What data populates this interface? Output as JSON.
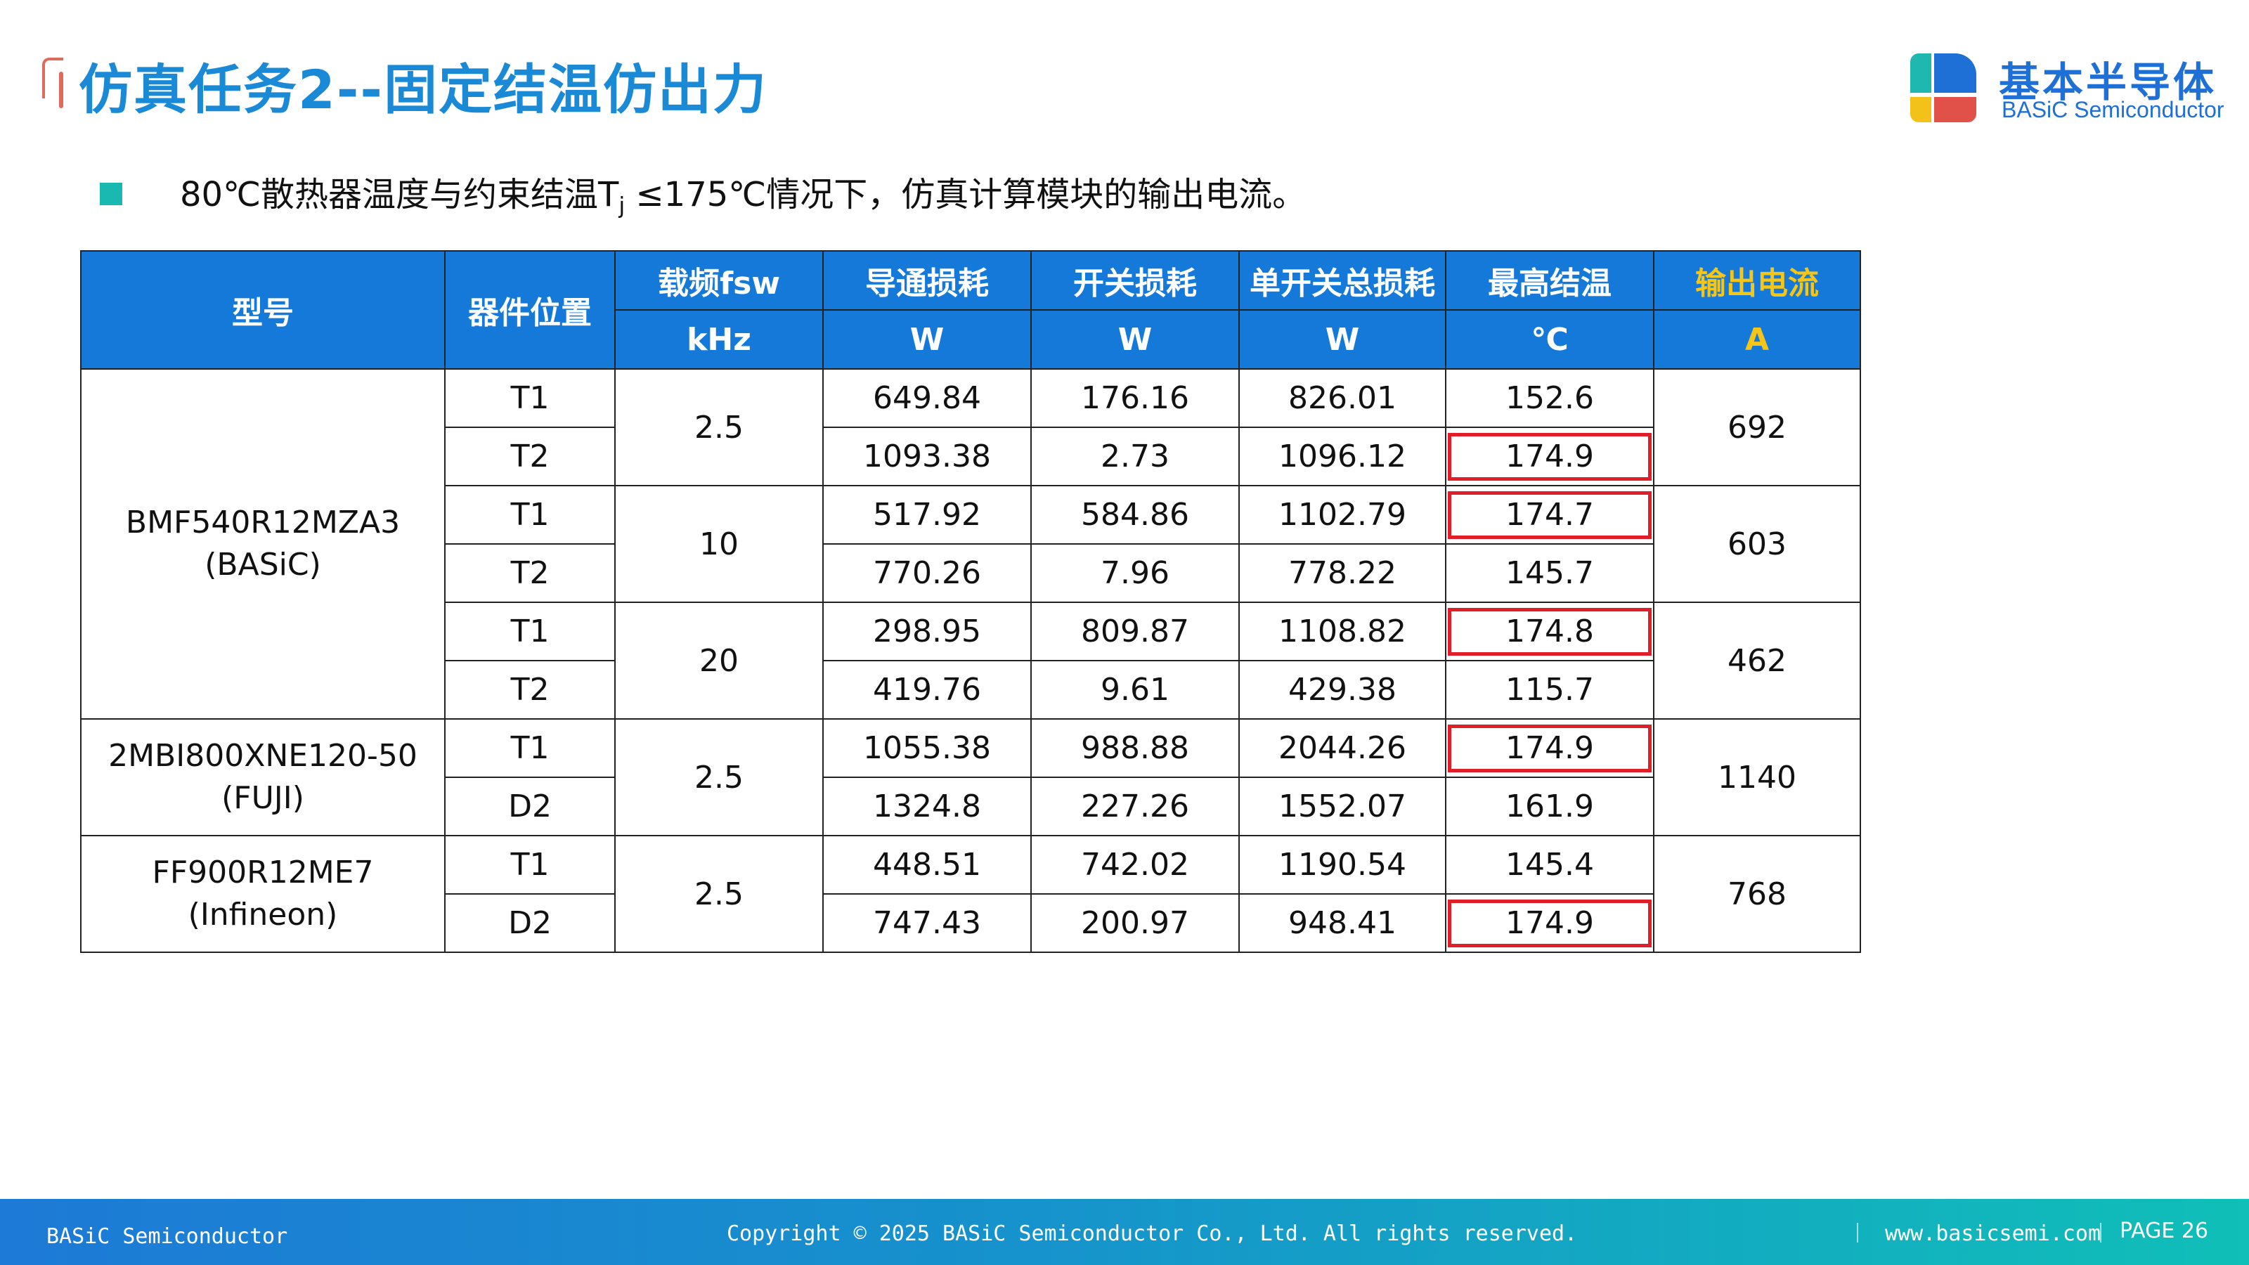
{
  "header": {
    "title": "仿真任务2--固定结温仿出力",
    "logo": {
      "name_cn": "基本半导体",
      "name_en": "BASiC Semiconductor",
      "colors": [
        "#1fb8b0",
        "#1e6fd6",
        "#f2c21a",
        "#e2504a"
      ]
    }
  },
  "bullet": {
    "text_before": "80℃散热器温度与约束结温T",
    "subscript": "j",
    "text_after": " ≤175℃情况下，仿真计算模块的输出电流。"
  },
  "table": {
    "headers": {
      "model": "型号",
      "position": "器件位置",
      "fsw": "载频fsw",
      "conduction_loss": "导通损耗",
      "switching_loss": "开关损耗",
      "total_loss": "单开关总损耗",
      "max_tj": "最高结温",
      "output_current": "输出电流"
    },
    "units": {
      "fsw": "kHz",
      "conduction_loss": "W",
      "switching_loss": "W",
      "total_loss": "W",
      "max_tj": "℃",
      "output_current": "A"
    },
    "groups": [
      {
        "model_line1": "BMF540R12MZA3",
        "model_line2": "(BASiC)"
      },
      {
        "model_line1": "2MBI800XNE120-50",
        "model_line2": "(FUJI)"
      },
      {
        "model_line1": "FF900R12ME7",
        "model_line2": "(Infineon)"
      }
    ],
    "conditions": [
      {
        "fsw": "2.5",
        "output_current": "692"
      },
      {
        "fsw": "10",
        "output_current": "603"
      },
      {
        "fsw": "20",
        "output_current": "462"
      },
      {
        "fsw": "2.5",
        "output_current": "1140"
      },
      {
        "fsw": "2.5",
        "output_current": "768"
      }
    ],
    "rows": [
      {
        "position": "T1",
        "conduction_loss": "649.84",
        "switching_loss": "176.16",
        "total_loss": "826.01",
        "max_tj": "152.6",
        "flagged": false
      },
      {
        "position": "T2",
        "conduction_loss": "1093.38",
        "switching_loss": "2.73",
        "total_loss": "1096.12",
        "max_tj": "174.9",
        "flagged": true
      },
      {
        "position": "T1",
        "conduction_loss": "517.92",
        "switching_loss": "584.86",
        "total_loss": "1102.79",
        "max_tj": "174.7",
        "flagged": true
      },
      {
        "position": "T2",
        "conduction_loss": "770.26",
        "switching_loss": "7.96",
        "total_loss": "778.22",
        "max_tj": "145.7",
        "flagged": false
      },
      {
        "position": "T1",
        "conduction_loss": "298.95",
        "switching_loss": "809.87",
        "total_loss": "1108.82",
        "max_tj": "174.8",
        "flagged": true
      },
      {
        "position": "T2",
        "conduction_loss": "419.76",
        "switching_loss": "9.61",
        "total_loss": "429.38",
        "max_tj": "115.7",
        "flagged": false
      },
      {
        "position": "T1",
        "conduction_loss": "1055.38",
        "switching_loss": "988.88",
        "total_loss": "2044.26",
        "max_tj": "174.9",
        "flagged": true
      },
      {
        "position": "D2",
        "conduction_loss": "1324.8",
        "switching_loss": "227.26",
        "total_loss": "1552.07",
        "max_tj": "161.9",
        "flagged": false
      },
      {
        "position": "T1",
        "conduction_loss": "448.51",
        "switching_loss": "742.02",
        "total_loss": "1190.54",
        "max_tj": "145.4",
        "flagged": false
      },
      {
        "position": "D2",
        "conduction_loss": "747.43",
        "switching_loss": "200.97",
        "total_loss": "948.41",
        "max_tj": "174.9",
        "flagged": true
      }
    ],
    "colors": {
      "header_bg": "#1479d9",
      "header_text": "#ffffff",
      "highlight_header_text": "#f5c518",
      "flag_border": "#e01e28"
    }
  },
  "footer": {
    "company": "BASiC Semiconductor",
    "copyright": "Copyright © 2025 BASiC Semiconductor Co., Ltd. All rights reserved.",
    "website": "www.basicsemi.com",
    "page": "PAGE 26"
  }
}
